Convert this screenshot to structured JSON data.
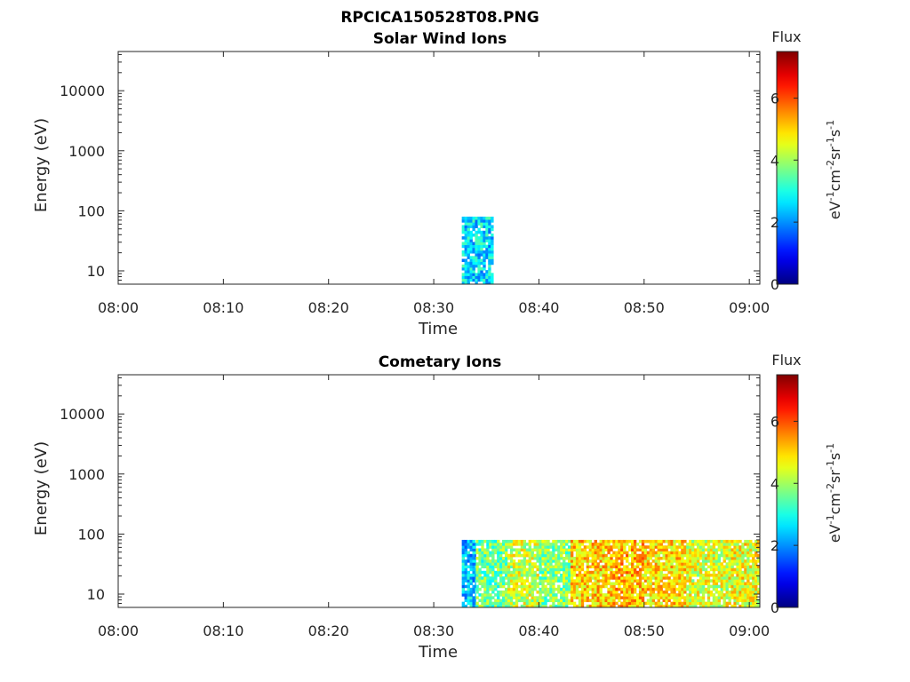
{
  "figure_title": "RPCICA150528T08.PNG",
  "chart_data": [
    {
      "type": "heatmap",
      "title": "Solar Wind Ions",
      "xlabel": "Time",
      "ylabel": "Energy (eV)",
      "x_ticks": [
        "08:00",
        "08:10",
        "08:20",
        "08:30",
        "08:40",
        "08:50",
        "09:00"
      ],
      "x_range": [
        "08:00",
        "09:01"
      ],
      "y_scale": "log",
      "y_ticks": [
        "10",
        "100",
        "1000",
        "10000"
      ],
      "y_range": [
        6,
        45000
      ],
      "data_energy_range": [
        6,
        80
      ],
      "colorbar": {
        "label": "Flux",
        "unit_label": "eV-1cm-2sr-1s-1",
        "ticks": [
          "0",
          "2",
          "4",
          "6"
        ],
        "range": [
          0,
          7.5
        ],
        "colormap": "jet"
      },
      "flux_segments": [
        {
          "start": "08:32:40",
          "end": "08:35:40",
          "flux": 2.6
        }
      ]
    },
    {
      "type": "heatmap",
      "title": "Cometary Ions",
      "xlabel": "Time",
      "ylabel": "Energy (eV)",
      "x_ticks": [
        "08:00",
        "08:10",
        "08:20",
        "08:30",
        "08:40",
        "08:50",
        "09:00"
      ],
      "x_range": [
        "08:00",
        "09:01"
      ],
      "y_scale": "log",
      "y_ticks": [
        "10",
        "100",
        "1000",
        "10000"
      ],
      "y_range": [
        6,
        45000
      ],
      "data_energy_range": [
        6,
        80
      ],
      "colorbar": {
        "label": "Flux",
        "unit_label": "eV-1cm-2sr-1s-1",
        "ticks": [
          "0",
          "2",
          "4",
          "6"
        ],
        "range": [
          0,
          7.5
        ],
        "colormap": "jet"
      },
      "flux_segments": [
        {
          "start": "08:32:40",
          "end": "08:34:00",
          "flux": 2.4
        },
        {
          "start": "08:34:00",
          "end": "08:37:00",
          "flux": 3.6
        },
        {
          "start": "08:37:00",
          "end": "08:40:00",
          "flux": 4.3
        },
        {
          "start": "08:40:00",
          "end": "08:43:00",
          "flux": 3.8
        },
        {
          "start": "08:43:00",
          "end": "08:47:00",
          "flux": 5.0
        },
        {
          "start": "08:47:00",
          "end": "08:50:00",
          "flux": 5.2
        },
        {
          "start": "08:50:00",
          "end": "08:54:00",
          "flux": 4.9
        },
        {
          "start": "08:54:00",
          "end": "08:58:00",
          "flux": 4.4
        },
        {
          "start": "08:58:00",
          "end": "09:01:00",
          "flux": 4.6
        }
      ]
    }
  ]
}
